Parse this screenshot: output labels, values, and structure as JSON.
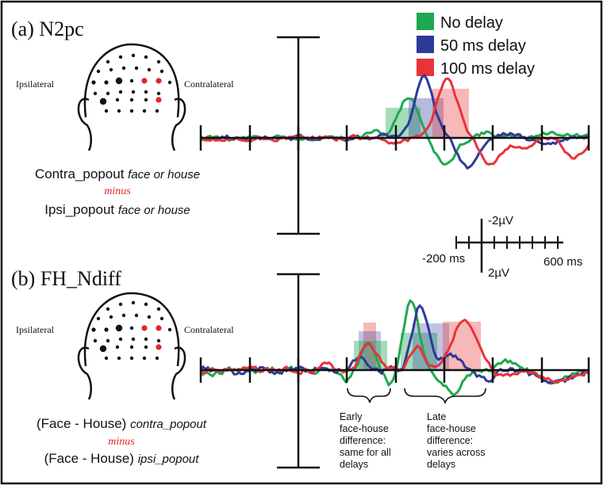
{
  "panel_a": {
    "title": "(a) N2pc",
    "ipsi_label": "Ipsilateral",
    "contra_label": "Contralateral",
    "formula_line1": "Contra_popout",
    "formula_line1_italic": "face or house",
    "minus": "minus",
    "formula_line2": "Ipsi_popout",
    "formula_line2_italic": "face or house"
  },
  "panel_b": {
    "title": "(b) FH_Ndiff",
    "ipsi_label": "Ipsilateral",
    "contra_label": "Contralateral",
    "formula_line1": "(Face - House)",
    "formula_line1_italic": "contra_popout",
    "minus": "minus",
    "formula_line2": "(Face - House)",
    "formula_line2_italic": "ipsi_popout",
    "annotation_early": [
      "Early",
      "face-house",
      "difference:",
      "same for all",
      "delays"
    ],
    "annotation_late": [
      "Late",
      "face-house",
      "difference:",
      "varies across",
      "delays"
    ]
  },
  "legend": [
    {
      "label": "No delay",
      "color": "#1fa84f"
    },
    {
      "label": "50 ms delay",
      "color": "#2e3a9a"
    },
    {
      "label": "100 ms delay",
      "color": "#e8333a"
    }
  ],
  "scale_bar": {
    "top": "-2µV",
    "bottom": "2µV",
    "left": "-200 ms",
    "right": "600 ms"
  },
  "colors": {
    "no_delay": "#1fa84f",
    "delay_50": "#2e3a9a",
    "delay_100": "#e8333a",
    "electrode_red": "#e0262b"
  }
}
